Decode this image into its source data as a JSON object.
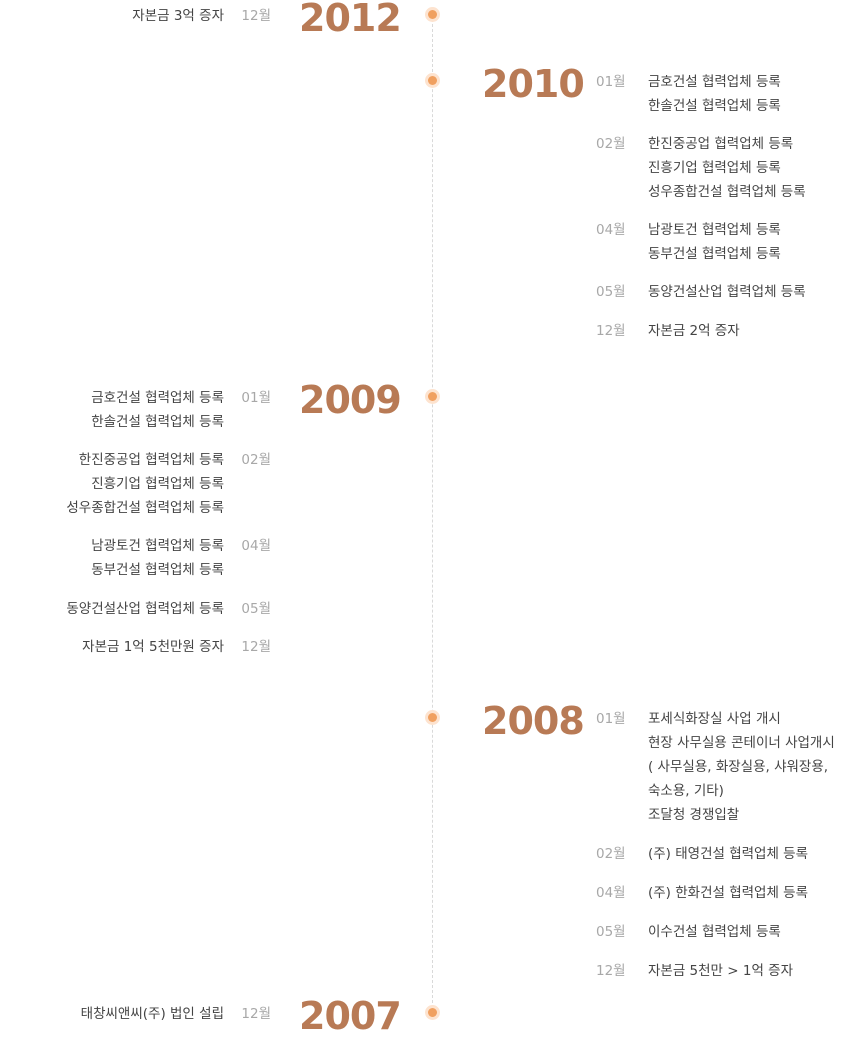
{
  "years": [
    {
      "year": "2012",
      "entries": [
        {
          "month": "12월",
          "lines": [
            "자본금 3억 증자"
          ]
        }
      ]
    },
    {
      "year": "2010",
      "entries": [
        {
          "month": "01월",
          "lines": [
            "금호건설 협력업체 등록",
            "한솔건설 협력업체 등록"
          ]
        },
        {
          "month": "02월",
          "lines": [
            "한진중공업 협력업체 등록",
            "진흥기업 협력업체 등록",
            "성우종합건설 협력업체 등록"
          ]
        },
        {
          "month": "04월",
          "lines": [
            "남광토건 협력업체 등록",
            "동부건설 협력업체 등록"
          ]
        },
        {
          "month": "05월",
          "lines": [
            "동양건설산업 협력업체 등록"
          ]
        },
        {
          "month": "12월",
          "lines": [
            "자본금 2억 증자"
          ]
        }
      ]
    },
    {
      "year": "2009",
      "entries": [
        {
          "month": "01월",
          "lines": [
            "금호건설 협력업체 등록",
            "한솔건설 협력업체 등록"
          ]
        },
        {
          "month": "02월",
          "lines": [
            "한진중공업 협력업체 등록",
            "진흥기업 협력업체 등록",
            "성우종합건설 협력업체 등록"
          ]
        },
        {
          "month": "04월",
          "lines": [
            "남광토건 협력업체 등록",
            "동부건설 협력업체 등록"
          ]
        },
        {
          "month": "05월",
          "lines": [
            "동양건설산업 협력업체 등록"
          ]
        },
        {
          "month": "12월",
          "lines": [
            "자본금 1억 5천만원 증자"
          ]
        }
      ]
    },
    {
      "year": "2008",
      "entries": [
        {
          "month": "01월",
          "lines": [
            "포세식화장실 사업 개시",
            "현장 사무실용 콘테이너 사업개시",
            "( 사무실용, 화장실용, 샤워장용,",
            "숙소용, 기타)",
            "조달청 경쟁입찰"
          ]
        },
        {
          "month": "02월",
          "lines": [
            "(주) 태영건설 협력업체 등록"
          ]
        },
        {
          "month": "04월",
          "lines": [
            "(주) 한화건설 협력업체 등록"
          ]
        },
        {
          "month": "05월",
          "lines": [
            "이수건설 협력업체 등록"
          ]
        },
        {
          "month": "12월",
          "lines": [
            "자본금 5천만 > 1억 증자"
          ]
        }
      ]
    },
    {
      "year": "2007",
      "entries": [
        {
          "month": "12월",
          "lines": [
            "태창씨앤씨(주) 법인 설립"
          ]
        }
      ]
    }
  ]
}
